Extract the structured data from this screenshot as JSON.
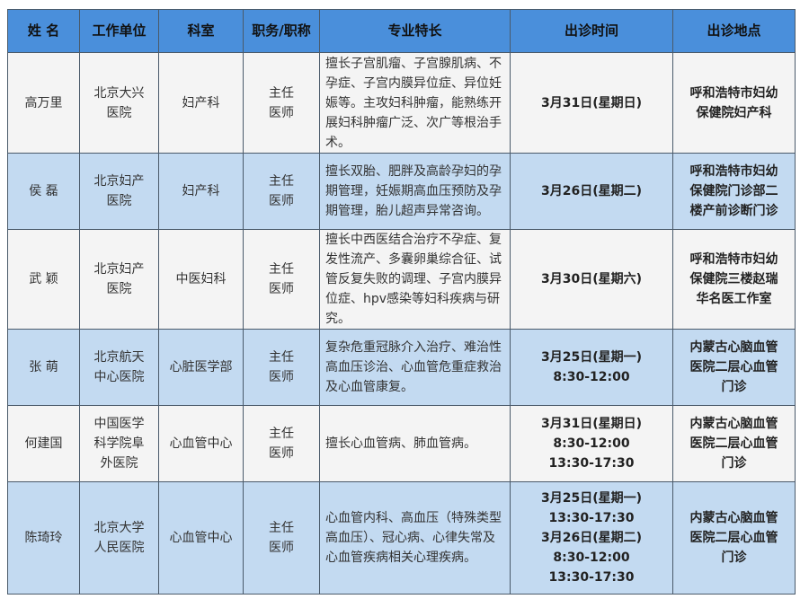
{
  "headers": [
    "姓  名",
    "工作单位",
    "科室",
    "职务/职称",
    "专业特长",
    "出诊时间",
    "出诊地点"
  ],
  "rows": [
    {
      "name": "高万里",
      "unit": "北京大兴\n医院",
      "dept": "妇产科",
      "title": "主任\n医师",
      "spec": "擅长子宫肌瘤、子宫腺肌病、不孕症、子宫内膜异位症、异位妊娠等。主攻妇科肿瘤，能熟练开展妇科肿瘤广泛、次广等根治手术。",
      "time": "3月31日(星期日)",
      "place": "呼和浩特市妇幼\n保健院妇产科"
    },
    {
      "name": "侯  磊",
      "unit": "北京妇产\n医院",
      "dept": "妇产科",
      "title": "主任\n医师",
      "spec": "擅长双胎、肥胖及高龄孕妇的孕期管理，妊娠期高血压预防及孕期管理，胎儿超声异常咨询。",
      "time": "3月26日(星期二)",
      "place": "呼和浩特市妇幼\n保健院门诊部二\n楼产前诊断门诊"
    },
    {
      "name": "武  颖",
      "unit": "北京妇产\n医院",
      "dept": "中医妇科",
      "title": "主任\n医师",
      "spec": "擅长中西医结合治疗不孕症、复发性流产、多囊卵巢综合征、试管反复失败的调理、子宫内膜异位症、hpv感染等妇科疾病与研究。",
      "time": "3月30日(星期六)",
      "place": "呼和浩特市妇幼\n保健院三楼赵瑞\n华名医工作室"
    },
    {
      "name": "张  萌",
      "unit": "北京航天\n中心医院",
      "dept": "心脏医学部",
      "title": "主任\n医师",
      "spec": "复杂危重冠脉介入治疗、难治性高血压诊治、心血管危重症救治及心血管康复。",
      "time": "3月25日(星期一)\n8:30-12:00",
      "place": "内蒙古心脑血管\n医院二层心血管\n门诊"
    },
    {
      "name": "何建国",
      "unit": "中国医学\n科学院阜\n外医院",
      "dept": "心血管中心",
      "title": "主任\n医师",
      "spec": "擅长心血管病、肺血管病。",
      "time": "3月31日(星期日)\n8:30-12:00\n13:30-17:30",
      "place": "内蒙古心脑血管\n医院二层心血管\n门诊"
    },
    {
      "name": "陈琦玲",
      "unit": "北京大学\n人民医院",
      "dept": "心血管中心",
      "title": "主任\n医师",
      "spec": "心血管内科、高血压（特殊类型高血压）、冠心病、心律失常及心血管疾病相关心理疾病。",
      "time": "3月25日(星期一)\n13:30-17:30\n3月26日(星期二)\n8:30-12:00\n13:30-17:30",
      "place": "内蒙古心脑血管\n医院二层心血管\n门诊"
    }
  ]
}
